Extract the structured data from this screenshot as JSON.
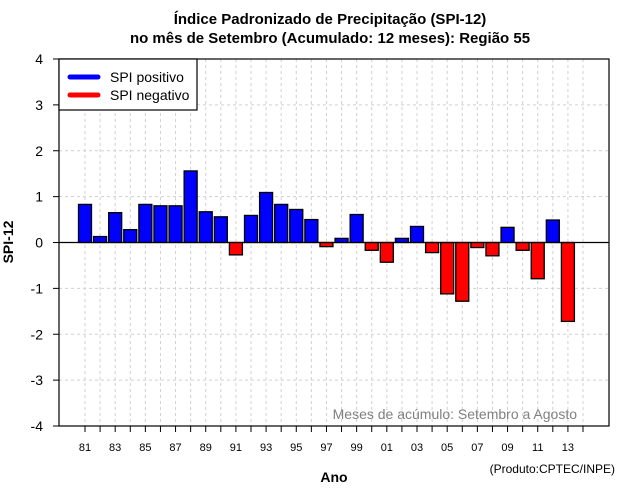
{
  "chart_data": {
    "type": "bar",
    "title": "Índice Padronizado de Precipitação (SPI-12)",
    "subtitle": "no mês de Setembro (Acumulado: 12 meses): Região 55",
    "xlabel": "Ano",
    "ylabel": "SPI-12",
    "ylim": [
      -4,
      4
    ],
    "yticks": [
      -4,
      -3,
      -2,
      -1,
      0,
      1,
      2,
      3,
      4
    ],
    "xlim_years": [
      1981,
      2014
    ],
    "xtick_labels": [
      "81",
      "83",
      "85",
      "87",
      "89",
      "91",
      "93",
      "95",
      "97",
      "99",
      "01",
      "03",
      "05",
      "07",
      "09",
      "11",
      "13"
    ],
    "grid": true,
    "categories": [
      1981,
      1982,
      1983,
      1984,
      1985,
      1986,
      1987,
      1988,
      1989,
      1990,
      1991,
      1992,
      1993,
      1994,
      1995,
      1996,
      1997,
      1998,
      1999,
      2000,
      2001,
      2002,
      2003,
      2004,
      2005,
      2006,
      2007,
      2008,
      2009,
      2010,
      2011,
      2012,
      2013
    ],
    "values": [
      0.83,
      0.13,
      0.65,
      0.28,
      0.83,
      0.8,
      0.8,
      1.56,
      0.67,
      0.56,
      -0.27,
      0.59,
      1.09,
      0.83,
      0.72,
      0.5,
      -0.09,
      0.09,
      0.61,
      -0.17,
      -0.43,
      0.09,
      0.35,
      -0.22,
      -1.12,
      -1.28,
      -0.11,
      -0.29,
      0.33,
      -0.17,
      -0.79,
      0.49,
      -1.72
    ],
    "legend": {
      "placement": "top-left",
      "entries": [
        {
          "label": "SPI positivo",
          "color": "#0000ff"
        },
        {
          "label": "SPI negativo",
          "color": "#ff0000"
        }
      ]
    },
    "annotation": "Meses de acúmulo: Setembro a Agosto",
    "credit": "(Produto:CPTEC/INPE)",
    "colors": {
      "positive": "#0000ff",
      "negative": "#ff0000"
    }
  }
}
